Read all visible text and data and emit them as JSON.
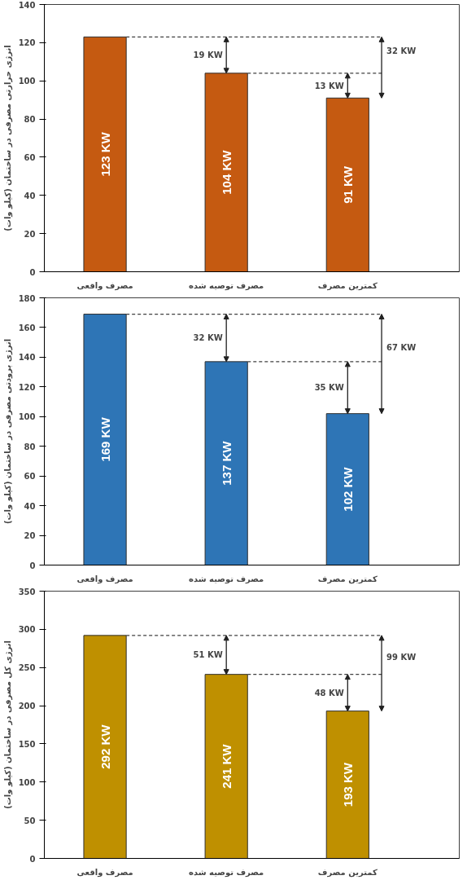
{
  "chart_data": [
    {
      "type": "bar",
      "ylabel": "انرژی حرارتی مصرفی در ساختمان (کیلو وات)",
      "categories": [
        "مصرف واقعی",
        "مصرف توصیه شده",
        "کمترین مصرف"
      ],
      "series": [
        {
          "color": "#c55a11",
          "values": [
            123,
            104,
            91
          ],
          "value_labels": [
            "123 KW",
            "104 KW",
            "91 KW"
          ]
        }
      ],
      "ref_lines": [
        {
          "axis": "y",
          "value": 123,
          "line_style": "dashed",
          "color": "#404040"
        },
        {
          "axis": "y",
          "value": 104,
          "line_style": "dashed",
          "color": "#404040"
        }
      ],
      "ylim": [
        0,
        140
      ],
      "yticks": [
        0,
        20,
        40,
        60,
        80,
        100,
        120,
        140
      ],
      "grid": false,
      "annotations": [
        "19 KW",
        "13 KW",
        "32 KW"
      ]
    },
    {
      "type": "bar",
      "ylabel": "انرژی برودتی مصرفی در ساختمان (کیلو وات)",
      "categories": [
        "مصرف واقعی",
        "مصرف توصیه شده",
        "کمترین مصرف"
      ],
      "series": [
        {
          "color": "#2e75b6",
          "values": [
            169,
            137,
            102
          ],
          "value_labels": [
            "169 KW",
            "137 KW",
            "102 KW"
          ]
        }
      ],
      "ref_lines": [
        {
          "axis": "y",
          "value": 169,
          "line_style": "dashed",
          "color": "#404040"
        },
        {
          "axis": "y",
          "value": 137,
          "line_style": "dashed",
          "color": "#404040"
        }
      ],
      "ylim": [
        0,
        180
      ],
      "yticks": [
        0,
        20,
        40,
        60,
        80,
        100,
        120,
        140,
        160,
        180
      ],
      "grid": false,
      "annotations": [
        "32 KW",
        "35 KW",
        "67 KW"
      ]
    },
    {
      "type": "bar",
      "ylabel": "انرژی کل مصرفی در ساختمان (کیلو وات)",
      "categories": [
        "مصرف واقعی",
        "مصرف توصیه شده",
        "کمترین مصرف"
      ],
      "series": [
        {
          "color": "#bf9000",
          "values": [
            292,
            241,
            193
          ],
          "value_labels": [
            "292 KW",
            "241 KW",
            "193 KW"
          ]
        }
      ],
      "ref_lines": [
        {
          "axis": "y",
          "value": 292,
          "line_style": "dashed",
          "color": "#404040"
        },
        {
          "axis": "y",
          "value": 241,
          "line_style": "dashed",
          "color": "#404040"
        }
      ],
      "ylim": [
        0,
        350
      ],
      "yticks": [
        0,
        50,
        100,
        150,
        200,
        250,
        300,
        350
      ],
      "grid": false,
      "annotations": [
        "51 KW",
        "48 KW",
        "99 KW"
      ]
    }
  ]
}
